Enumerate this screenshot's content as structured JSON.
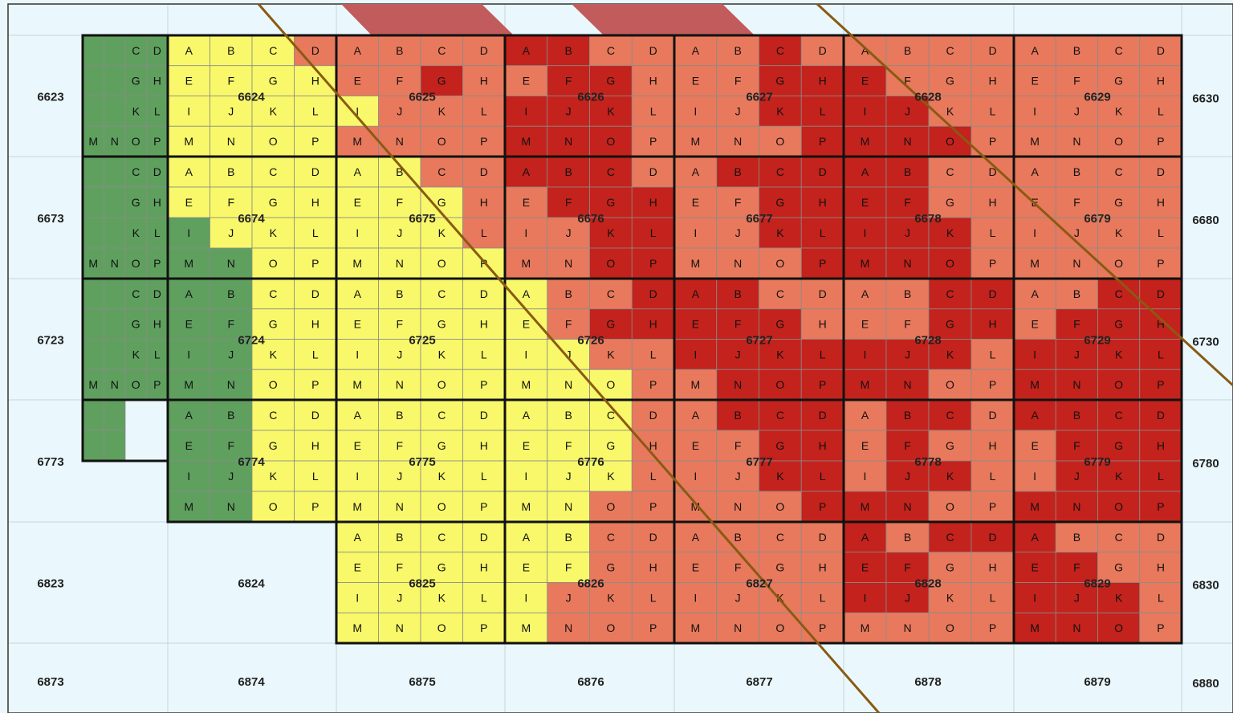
{
  "letters": [
    "A",
    "B",
    "C",
    "D",
    "E",
    "F",
    "G",
    "H",
    "I",
    "J",
    "K",
    "L",
    "M",
    "N",
    "O",
    "P"
  ],
  "colors": {
    "background": "#eaf8fd",
    "green": "#5fa05f",
    "yellow": "#f8f86a",
    "light_red": "#e8795c",
    "dark_red": "#c4221c",
    "band_top": "#c25b5c",
    "line": "#8a5a12",
    "grid": "#999999"
  },
  "rows": [
    {
      "left": "6623",
      "right": "6630",
      "blocks": [
        {
          "label": "",
          "colors": "GGGGGGGGGGGGGGGG",
          "letters_shown": "0011001100111111"
        },
        {
          "label": "6624",
          "colors": "YYYRYYYYYYYYYYYY"
        },
        {
          "label": "6625",
          "colors": "RRRRRRDRYRRRRRRR"
        },
        {
          "label": "6626",
          "colors": "DDRRRDDRDDDRDDDR"
        },
        {
          "label": "6627",
          "colors": "RRDRRRDDRRDDRRRD"
        },
        {
          "label": "6628",
          "colors": "RRRRDRRRDDRRDDDR"
        },
        {
          "label": "6629",
          "colors": "RRRRRRRRRRRRRRRR"
        }
      ]
    },
    {
      "left": "6673",
      "right": "6680",
      "blocks": [
        {
          "label": "",
          "colors": "GGGGGGGGGGGGGGGG",
          "letters_shown": "0011001100111111"
        },
        {
          "label": "6674",
          "colors": "YYYYYYYYGYYYGGYY"
        },
        {
          "label": "6675",
          "colors": "YYRRYYYRYYYRYYYY"
        },
        {
          "label": "6676",
          "colors": "DDDRRDDDRRDDRRDD"
        },
        {
          "label": "6677",
          "colors": "RDDDRRDDRRDDRRRD"
        },
        {
          "label": "6678",
          "colors": "DDRRDDRRDDDRDDDR"
        },
        {
          "label": "6679",
          "colors": "RRRRRRRRRRRRRRRR"
        }
      ]
    },
    {
      "left": "6723",
      "right": "6730",
      "blocks": [
        {
          "label": "",
          "colors": "GGGGGGGGGGGGGGGG",
          "letters_shown": "0011001100111111"
        },
        {
          "label": "6724",
          "colors": "GGYYGGYYGGYYGGYY"
        },
        {
          "label": "6725",
          "colors": "YYYYYYYYYYYYYYYY"
        },
        {
          "label": "6726",
          "colors": "YRRDYRDDYYRRYYYR"
        },
        {
          "label": "6727",
          "colors": "DDRRDDDRDDDDRDDD"
        },
        {
          "label": "6728",
          "colors": "RRDDRRDDDDDRDDRR"
        },
        {
          "label": "6729",
          "colors": "RRDDRDDDDDDDDDDD"
        }
      ]
    },
    {
      "left": "6773",
      "right": "6780",
      "blocks": [
        {
          "label": "",
          "colors": "GGGG",
          "letters_shown": "0011001100000000"
        },
        {
          "label": "6774",
          "colors": "GGYYGGYYGGYYGGYY"
        },
        {
          "label": "6775",
          "colors": "YYYYYYYYYYYYYYYY"
        },
        {
          "label": "6776",
          "colors": "YYYRYYYRYYYRYYRR"
        },
        {
          "label": "6777",
          "colors": "RDDDRRDDRRDDRRRD"
        },
        {
          "label": "6778",
          "colors": "RDDRRDRRRDDRDDRR"
        },
        {
          "label": "6779",
          "colors": "DDDDRDDDRDDDDDDD"
        }
      ]
    },
    {
      "left": "6823",
      "right": "6830",
      "blocks": [
        {
          "label": "",
          "colors": "",
          "letters_shown": "0000000000000000"
        },
        {
          "label": "6824",
          "colors": ""
        },
        {
          "label": "6825",
          "colors": "YYYYYYYYYYYYYYYY"
        },
        {
          "label": "6826",
          "colors": "YYRRYYRRYRRRYRRR"
        },
        {
          "label": "6827",
          "colors": "RRRRRRRRRRRRRRRR"
        },
        {
          "label": "6828",
          "colors": "DRDDDDRRDDRRRRRR"
        },
        {
          "label": "6829",
          "colors": "DRRRDDRRDDDRDDDR"
        }
      ]
    },
    {
      "left": "6873",
      "right": "6880",
      "blocks": [
        {
          "label": "",
          "colors": ""
        },
        {
          "label": "6874",
          "colors": ""
        },
        {
          "label": "6875",
          "colors": ""
        },
        {
          "label": "6876",
          "colors": ""
        },
        {
          "label": "6877",
          "colors": ""
        },
        {
          "label": "6878",
          "colors": ""
        },
        {
          "label": "6879",
          "colors": ""
        }
      ]
    }
  ]
}
